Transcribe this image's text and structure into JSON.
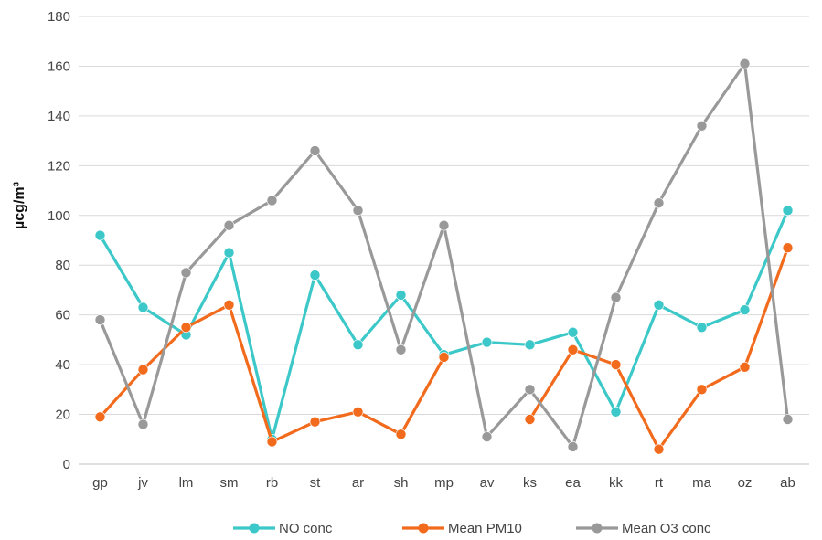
{
  "chart_data": {
    "type": "line",
    "title": "",
    "xlabel": "",
    "ylabel": "µcg/m³",
    "ylim": [
      0,
      180
    ],
    "yticks": [
      0,
      20,
      40,
      60,
      80,
      100,
      120,
      140,
      160,
      180
    ],
    "grid": true,
    "legend": "bottom",
    "categories": [
      "gp",
      "jv",
      "lm",
      "sm",
      "rb",
      "st",
      "ar",
      "sh",
      "mp",
      "av",
      "ks",
      "ea",
      "kk",
      "rt",
      "ma",
      "oz",
      "ab"
    ],
    "series": [
      {
        "name": "NO conc",
        "color": "#3cc8c8",
        "values": [
          92,
          63,
          52,
          85,
          10,
          76,
          48,
          68,
          44,
          49,
          48,
          53,
          21,
          64,
          55,
          62,
          102
        ]
      },
      {
        "name": "Mean PM10",
        "color": "#f26b1d",
        "values": [
          19,
          38,
          55,
          64,
          9,
          17,
          21,
          12,
          43,
          null,
          18,
          46,
          40,
          6,
          30,
          39,
          87
        ]
      },
      {
        "name": "Mean O3 conc",
        "color": "#999999",
        "values": [
          58,
          16,
          77,
          96,
          106,
          126,
          102,
          46,
          96,
          11,
          30,
          7,
          67,
          105,
          136,
          161,
          18
        ]
      }
    ]
  }
}
